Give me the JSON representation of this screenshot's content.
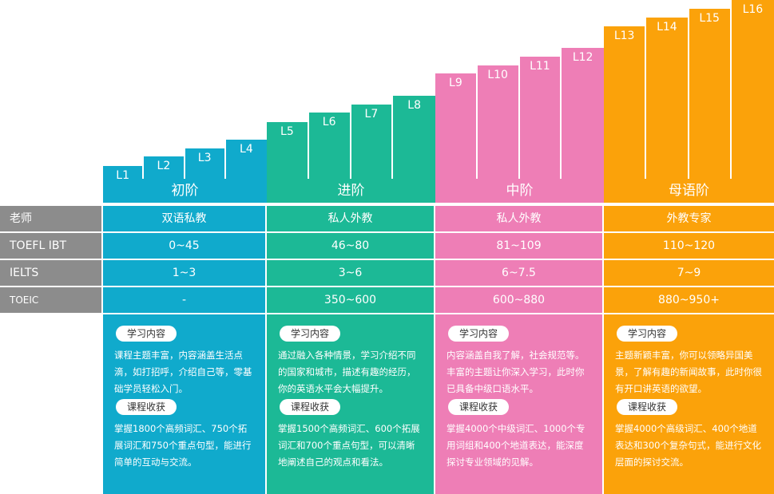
{
  "colors": {
    "blue": "#10aacc",
    "green": "#1cb996",
    "pink": "#ee7eb6",
    "orange": "#fba20a",
    "gray": "#8c8c8c"
  },
  "levels": [
    "L1",
    "L2",
    "L3",
    "L4",
    "L5",
    "L6",
    "L7",
    "L8",
    "L9",
    "L10",
    "L11",
    "L12",
    "L13",
    "L14",
    "L15",
    "L16"
  ],
  "tiers": [
    "初阶",
    "进阶",
    "中阶",
    "母语阶"
  ],
  "rows": [
    {
      "header": "老师",
      "values": [
        "双语私教",
        "私人外教",
        "私人外教",
        "外教专家"
      ]
    },
    {
      "header": "TOEFL IBT",
      "values": [
        "0~45",
        "46~80",
        "81~109",
        "110~120"
      ]
    },
    {
      "header": "IELTS",
      "values": [
        "1~3",
        "3~6",
        "6~7.5",
        "7~9"
      ]
    },
    {
      "header": "TOEIC",
      "values": [
        "-",
        "350~600",
        "600~880",
        "880~950+"
      ]
    }
  ],
  "panel_labels": {
    "content": "学习内容",
    "gain": "课程收获"
  },
  "panels": [
    {
      "content": "课程主题丰富，内容涵盖生活点滴，如打招呼，介绍自己等，零基础学员轻松入门。",
      "gain": "掌握1800个高频词汇、750个拓展词汇和750个重点句型，能进行简单的互动与交流。"
    },
    {
      "content": "通过融入各种情景，学习介绍不同的国家和城市，描述有趣的经历，你的英语水平会大幅提升。",
      "gain": "掌握1500个高频词汇、600个拓展词汇和700个重点句型，可以清晰地阐述自己的观点和看法。"
    },
    {
      "content": "内容涵盖自我了解，社会规范等。丰富的主题让你深入学习，此时你已具备中级口语水平。",
      "gain": "掌握4000个中级词汇、1000个专用词组和400个地道表达，能深度探讨专业领域的见解。"
    },
    {
      "content": "主题新颖丰富，你可以领略异国美景，了解有趣的新闻故事，此时你很有开口讲英语的欲望。",
      "gain": "掌握4000个高级词汇、400个地道表达和300个复杂句式，能进行文化层面的探讨交流。"
    }
  ]
}
